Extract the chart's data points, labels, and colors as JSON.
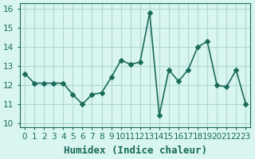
{
  "x": [
    0,
    1,
    2,
    3,
    4,
    5,
    6,
    7,
    8,
    9,
    10,
    11,
    12,
    13,
    14,
    15,
    16,
    17,
    18,
    19,
    20,
    21,
    22,
    23
  ],
  "y": [
    12.6,
    12.1,
    12.1,
    12.1,
    12.1,
    11.5,
    11.0,
    11.5,
    11.6,
    12.4,
    13.3,
    13.1,
    13.2,
    15.8,
    10.4,
    12.8,
    12.2,
    12.8,
    14.0,
    14.3,
    12.0,
    11.9,
    12.8,
    11.0
  ],
  "line_color": "#1a6b5a",
  "marker": "D",
  "markersize": 3,
  "linewidth": 1.2,
  "background_color": "#d8f5f0",
  "grid_color": "#b0d8d0",
  "xlabel": "Humidex (Indice chaleur)",
  "xlabel_fontsize": 9,
  "xlabel_color": "#1a6b5a",
  "ylabel_ticks": [
    10,
    11,
    12,
    13,
    14,
    15,
    16
  ],
  "ylim": [
    9.8,
    16.3
  ],
  "xlim": [
    -0.5,
    23.5
  ],
  "tick_color": "#1a6b5a",
  "tick_fontsize": 7.5
}
